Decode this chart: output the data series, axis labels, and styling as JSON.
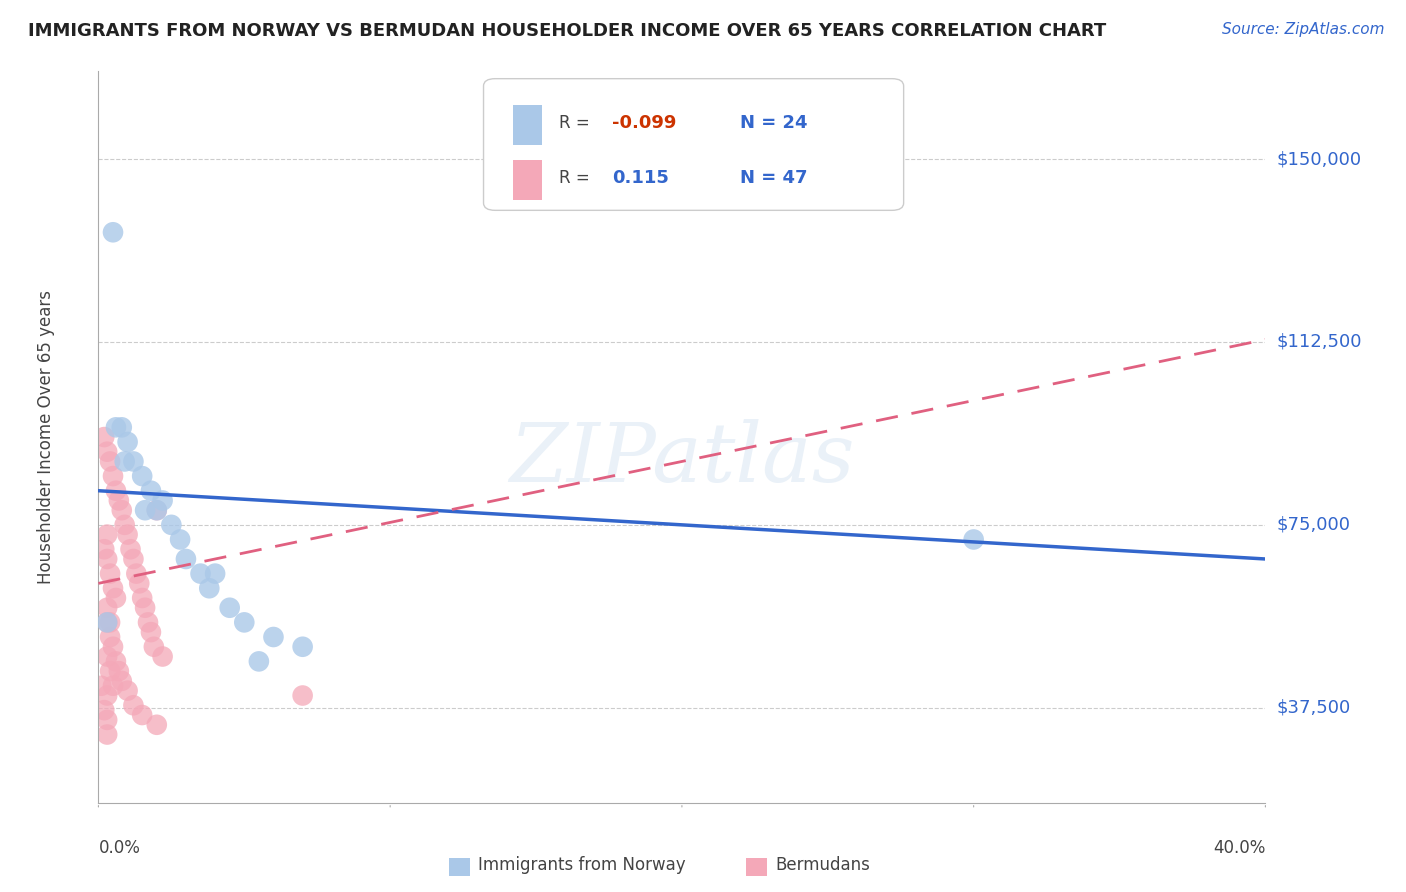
{
  "title": "IMMIGRANTS FROM NORWAY VS BERMUDAN HOUSEHOLDER INCOME OVER 65 YEARS CORRELATION CHART",
  "source": "Source: ZipAtlas.com",
  "ylabel": "Householder Income Over 65 years",
  "xlim": [
    0.0,
    0.4
  ],
  "ylim": [
    18000,
    168000
  ],
  "ytick_labels": [
    "$37,500",
    "$75,000",
    "$112,500",
    "$150,000"
  ],
  "ytick_values": [
    37500,
    75000,
    112500,
    150000
  ],
  "r_norway": -0.099,
  "n_norway": 24,
  "r_bermuda": 0.115,
  "n_bermuda": 47,
  "norway_color": "#aac8e8",
  "bermuda_color": "#f4a8b8",
  "norway_line_color": "#3366cc",
  "bermuda_line_color": "#e06080",
  "watermark": "ZIPatlas",
  "norway_line_y0": 82000,
  "norway_line_y1": 68000,
  "bermuda_line_y0": 63000,
  "bermuda_line_y1": 113000,
  "norway_x": [
    0.003,
    0.005,
    0.008,
    0.01,
    0.012,
    0.015,
    0.018,
    0.02,
    0.022,
    0.025,
    0.028,
    0.03,
    0.035,
    0.038,
    0.04,
    0.045,
    0.05,
    0.06,
    0.07,
    0.3,
    0.006,
    0.009,
    0.016,
    0.055
  ],
  "norway_y": [
    55000,
    135000,
    95000,
    92000,
    88000,
    85000,
    82000,
    78000,
    80000,
    75000,
    72000,
    68000,
    65000,
    62000,
    65000,
    58000,
    55000,
    52000,
    50000,
    72000,
    95000,
    88000,
    78000,
    47000
  ],
  "bermuda_x": [
    0.001,
    0.002,
    0.003,
    0.004,
    0.005,
    0.006,
    0.007,
    0.008,
    0.009,
    0.01,
    0.011,
    0.012,
    0.013,
    0.014,
    0.015,
    0.016,
    0.017,
    0.018,
    0.019,
    0.02,
    0.022,
    0.003,
    0.004,
    0.005,
    0.006,
    0.007,
    0.008,
    0.01,
    0.012,
    0.015,
    0.02,
    0.003,
    0.004,
    0.005,
    0.006,
    0.003,
    0.003,
    0.004,
    0.002,
    0.003,
    0.004,
    0.005,
    0.003,
    0.002,
    0.003,
    0.07,
    0.003
  ],
  "bermuda_y": [
    42000,
    93000,
    90000,
    88000,
    85000,
    82000,
    80000,
    78000,
    75000,
    73000,
    70000,
    68000,
    65000,
    63000,
    60000,
    58000,
    55000,
    53000,
    50000,
    78000,
    48000,
    55000,
    52000,
    50000,
    47000,
    45000,
    43000,
    41000,
    38000,
    36000,
    34000,
    68000,
    65000,
    62000,
    60000,
    73000,
    58000,
    55000,
    70000,
    48000,
    45000,
    42000,
    40000,
    37000,
    35000,
    40000,
    32000
  ]
}
